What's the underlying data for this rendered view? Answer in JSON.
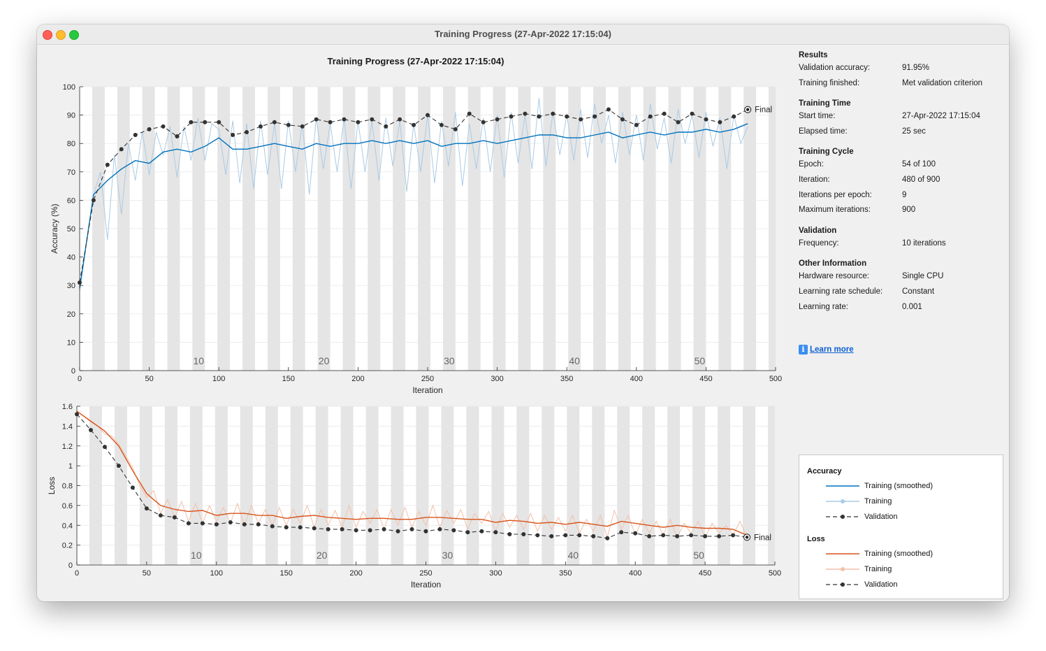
{
  "window": {
    "title": "Training Progress (27-Apr-2022 17:15:04)"
  },
  "plot_title": "Training Progress (27-Apr-2022 17:15:04)",
  "results": {
    "heading": "Results",
    "rows": [
      {
        "label": "Validation accuracy:",
        "value": "91.95%"
      },
      {
        "label": "Training finished:",
        "value": "Met validation criterion"
      }
    ]
  },
  "training_time": {
    "heading": "Training Time",
    "rows": [
      {
        "label": "Start time:",
        "value": "27-Apr-2022 17:15:04"
      },
      {
        "label": "Elapsed time:",
        "value": "25 sec"
      }
    ]
  },
  "training_cycle": {
    "heading": "Training Cycle",
    "rows": [
      {
        "label": "Epoch:",
        "value": "54 of 100"
      },
      {
        "label": "Iteration:",
        "value": "480 of 900"
      },
      {
        "label": "Iterations per epoch:",
        "value": "9"
      },
      {
        "label": "Maximum iterations:",
        "value": "900"
      }
    ]
  },
  "validation": {
    "heading": "Validation",
    "rows": [
      {
        "label": "Frequency:",
        "value": "10 iterations"
      }
    ]
  },
  "other_info": {
    "heading": "Other Information",
    "rows": [
      {
        "label": "Hardware resource:",
        "value": "Single CPU"
      },
      {
        "label": "Learning rate schedule:",
        "value": "Constant"
      },
      {
        "label": "Learning rate:",
        "value": "0.001"
      }
    ]
  },
  "learn_more": {
    "icon": "info-icon",
    "label": "Learn more"
  },
  "legend": {
    "accuracy_heading": "Accuracy",
    "loss_heading": "Loss",
    "items": [
      "Training (smoothed)",
      "Training",
      "Validation"
    ]
  },
  "colors": {
    "accuracy_smoothed": "#0072bd",
    "accuracy_raw": "#a9cbe6",
    "loss_smoothed": "#d95319",
    "loss_raw": "#f2c1a9",
    "validation": "#333333",
    "epoch_band": "#e5e5e5"
  },
  "chart_data": [
    {
      "type": "line",
      "ylabel": "Accuracy (%)",
      "xlabel": "Iteration",
      "xlim": [
        0,
        500
      ],
      "ylim": [
        0,
        100
      ],
      "x_ticks": [
        0,
        50,
        100,
        150,
        200,
        250,
        300,
        350,
        400,
        450,
        500
      ],
      "y_ticks": [
        0,
        10,
        20,
        30,
        40,
        50,
        60,
        70,
        80,
        90,
        100
      ],
      "epoch_labels": [
        10,
        20,
        30,
        40,
        50
      ],
      "iterations_per_epoch": 9,
      "final_label": "Final",
      "validation": {
        "x": [
          0,
          10,
          20,
          30,
          40,
          50,
          60,
          70,
          80,
          90,
          100,
          110,
          120,
          130,
          140,
          150,
          160,
          170,
          180,
          190,
          200,
          210,
          220,
          230,
          240,
          250,
          260,
          270,
          280,
          290,
          300,
          310,
          320,
          330,
          340,
          350,
          360,
          370,
          380,
          390,
          400,
          410,
          420,
          430,
          440,
          450,
          460,
          470,
          480
        ],
        "y": [
          31,
          60,
          72.5,
          78,
          83,
          85,
          86,
          82.5,
          87.5,
          87.5,
          87.5,
          83,
          84,
          86,
          87.5,
          86.5,
          86,
          88.5,
          87.5,
          88.5,
          87.5,
          88.5,
          86,
          88.5,
          86.5,
          90,
          86.5,
          85,
          90.5,
          87.5,
          88.5,
          89.5,
          90.5,
          89.5,
          90.5,
          89.5,
          88.5,
          89.5,
          92,
          88.5,
          86.5,
          89.5,
          90.5,
          87.5,
          90.5,
          88.5,
          87.5,
          89.5,
          91.95
        ]
      },
      "smoothed": {
        "x": [
          0,
          10,
          20,
          30,
          40,
          50,
          60,
          70,
          80,
          90,
          100,
          110,
          120,
          130,
          140,
          150,
          160,
          170,
          180,
          190,
          200,
          210,
          220,
          230,
          240,
          250,
          260,
          270,
          280,
          290,
          300,
          310,
          320,
          330,
          340,
          350,
          360,
          370,
          380,
          390,
          400,
          410,
          420,
          430,
          440,
          450,
          460,
          470,
          480
        ],
        "y": [
          29,
          62,
          67,
          71,
          74,
          73,
          77,
          78,
          77,
          79,
          82,
          78,
          78,
          79,
          80,
          79,
          78,
          80,
          79,
          80,
          80,
          81,
          80,
          81,
          80,
          81,
          79,
          80,
          80,
          81,
          80,
          81,
          82,
          83,
          83,
          82,
          82,
          83,
          84,
          82,
          83,
          84,
          83,
          84,
          84,
          85,
          84,
          85,
          87
        ]
      },
      "raw": {
        "x": [
          0,
          5,
          10,
          15,
          20,
          25,
          30,
          35,
          40,
          45,
          50,
          55,
          60,
          65,
          70,
          75,
          80,
          85,
          90,
          95,
          100,
          105,
          110,
          115,
          120,
          125,
          130,
          135,
          140,
          145,
          150,
          155,
          160,
          165,
          170,
          175,
          180,
          185,
          190,
          195,
          200,
          205,
          210,
          215,
          220,
          225,
          230,
          235,
          240,
          245,
          250,
          255,
          260,
          265,
          270,
          275,
          280,
          285,
          290,
          295,
          300,
          305,
          310,
          315,
          320,
          325,
          330,
          335,
          340,
          345,
          350,
          355,
          360,
          365,
          370,
          375,
          380,
          385,
          390,
          395,
          400,
          405,
          410,
          415,
          420,
          425,
          430,
          435,
          440,
          445,
          450,
          455,
          460,
          465,
          470,
          475,
          480
        ],
        "y": [
          28,
          45,
          62,
          70,
          46,
          76,
          55,
          80,
          67,
          84,
          69,
          84,
          76,
          86,
          68,
          86,
          74,
          89,
          74,
          87,
          85,
          69,
          88,
          66,
          87,
          64,
          88,
          69,
          87,
          64,
          88,
          70,
          87,
          62,
          89,
          71,
          87,
          70,
          89,
          64,
          88,
          70,
          88,
          67,
          89,
          72,
          88,
          63,
          87,
          70,
          90,
          66,
          88,
          72,
          91,
          65,
          87,
          71,
          89,
          70,
          90,
          68,
          91,
          73,
          90,
          71,
          96,
          72,
          91,
          76,
          90,
          74,
          92,
          75,
          94,
          80,
          90,
          73,
          91,
          76,
          90,
          74,
          94,
          78,
          89,
          73,
          92,
          80,
          90,
          75,
          91,
          79,
          89,
          71,
          90,
          80,
          86
        ]
      }
    },
    {
      "type": "line",
      "ylabel": "Loss",
      "xlabel": "Iteration",
      "xlim": [
        0,
        500
      ],
      "ylim": [
        0,
        1.6
      ],
      "x_ticks": [
        0,
        50,
        100,
        150,
        200,
        250,
        300,
        350,
        400,
        450,
        500
      ],
      "y_ticks": [
        0,
        0.2,
        0.4,
        0.6,
        0.8,
        1,
        1.2,
        1.4,
        1.6
      ],
      "epoch_labels": [
        10,
        20,
        30,
        40,
        50
      ],
      "iterations_per_epoch": 9,
      "final_label": "Final",
      "validation": {
        "x": [
          0,
          10,
          20,
          30,
          40,
          50,
          60,
          70,
          80,
          90,
          100,
          110,
          120,
          130,
          140,
          150,
          160,
          170,
          180,
          190,
          200,
          210,
          220,
          230,
          240,
          250,
          260,
          270,
          280,
          290,
          300,
          310,
          320,
          330,
          340,
          350,
          360,
          370,
          380,
          390,
          400,
          410,
          420,
          430,
          440,
          450,
          460,
          470,
          480
        ],
        "y": [
          1.52,
          1.36,
          1.19,
          1.0,
          0.78,
          0.57,
          0.5,
          0.48,
          0.42,
          0.42,
          0.41,
          0.43,
          0.41,
          0.41,
          0.39,
          0.38,
          0.38,
          0.37,
          0.36,
          0.36,
          0.35,
          0.35,
          0.36,
          0.34,
          0.36,
          0.34,
          0.36,
          0.35,
          0.33,
          0.34,
          0.33,
          0.31,
          0.31,
          0.3,
          0.29,
          0.3,
          0.3,
          0.29,
          0.27,
          0.33,
          0.32,
          0.29,
          0.3,
          0.29,
          0.3,
          0.29,
          0.29,
          0.3,
          0.28
        ]
      },
      "smoothed": {
        "x": [
          0,
          10,
          20,
          30,
          40,
          50,
          60,
          70,
          80,
          90,
          100,
          110,
          120,
          130,
          140,
          150,
          160,
          170,
          180,
          190,
          200,
          210,
          220,
          230,
          240,
          250,
          260,
          270,
          280,
          290,
          300,
          310,
          320,
          330,
          340,
          350,
          360,
          370,
          380,
          390,
          400,
          410,
          420,
          430,
          440,
          450,
          460,
          470,
          480
        ],
        "y": [
          1.55,
          1.45,
          1.35,
          1.2,
          0.95,
          0.72,
          0.6,
          0.56,
          0.54,
          0.55,
          0.5,
          0.52,
          0.52,
          0.5,
          0.5,
          0.47,
          0.49,
          0.5,
          0.48,
          0.47,
          0.46,
          0.47,
          0.47,
          0.46,
          0.46,
          0.48,
          0.48,
          0.47,
          0.46,
          0.46,
          0.43,
          0.45,
          0.44,
          0.42,
          0.43,
          0.41,
          0.43,
          0.41,
          0.39,
          0.44,
          0.42,
          0.4,
          0.38,
          0.4,
          0.38,
          0.37,
          0.37,
          0.36,
          0.3
        ]
      },
      "raw": {
        "x": [
          0,
          5,
          10,
          15,
          20,
          25,
          30,
          35,
          40,
          45,
          50,
          55,
          60,
          65,
          70,
          75,
          80,
          85,
          90,
          95,
          100,
          105,
          110,
          115,
          120,
          125,
          130,
          135,
          140,
          145,
          150,
          155,
          160,
          165,
          170,
          175,
          180,
          185,
          190,
          195,
          200,
          205,
          210,
          215,
          220,
          225,
          230,
          235,
          240,
          245,
          250,
          255,
          260,
          265,
          270,
          275,
          280,
          285,
          290,
          295,
          300,
          305,
          310,
          315,
          320,
          325,
          330,
          335,
          340,
          345,
          350,
          355,
          360,
          365,
          370,
          375,
          380,
          385,
          390,
          395,
          400,
          405,
          410,
          415,
          420,
          425,
          430,
          435,
          440,
          445,
          450,
          455,
          460,
          465,
          470,
          475,
          480
        ],
        "y": [
          1.55,
          1.5,
          1.44,
          1.4,
          1.32,
          1.3,
          1.22,
          1.1,
          0.98,
          0.8,
          0.68,
          0.75,
          0.52,
          0.66,
          0.48,
          0.64,
          0.44,
          0.62,
          0.42,
          0.6,
          0.44,
          0.58,
          0.42,
          0.62,
          0.4,
          0.6,
          0.42,
          0.56,
          0.4,
          0.58,
          0.4,
          0.56,
          0.42,
          0.6,
          0.38,
          0.56,
          0.4,
          0.55,
          0.38,
          0.6,
          0.38,
          0.54,
          0.42,
          0.56,
          0.36,
          0.56,
          0.4,
          0.58,
          0.38,
          0.54,
          0.4,
          0.6,
          0.38,
          0.55,
          0.42,
          0.56,
          0.36,
          0.52,
          0.42,
          0.54,
          0.34,
          0.52,
          0.38,
          0.5,
          0.36,
          0.52,
          0.34,
          0.5,
          0.36,
          0.48,
          0.34,
          0.5,
          0.32,
          0.46,
          0.34,
          0.5,
          0.28,
          0.55,
          0.36,
          0.5,
          0.3,
          0.46,
          0.32,
          0.44,
          0.3,
          0.46,
          0.28,
          0.42,
          0.32,
          0.44,
          0.28,
          0.42,
          0.32,
          0.4,
          0.3,
          0.44,
          0.28
        ]
      }
    }
  ]
}
